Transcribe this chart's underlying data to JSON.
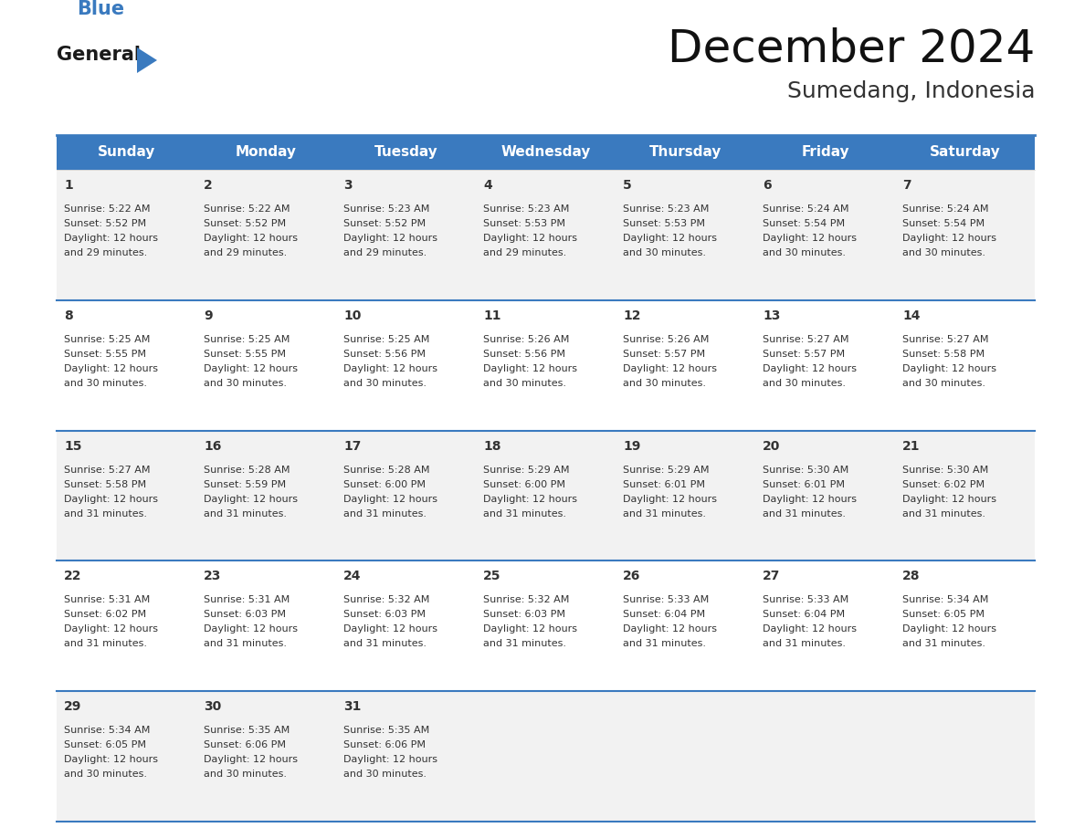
{
  "title": "December 2024",
  "subtitle": "Sumedang, Indonesia",
  "header_color": "#3a7abf",
  "header_text_color": "#ffffff",
  "cell_bg_odd": "#f2f2f2",
  "cell_bg_even": "#ffffff",
  "border_color": "#3a7abf",
  "text_color": "#333333",
  "days_of_week": [
    "Sunday",
    "Monday",
    "Tuesday",
    "Wednesday",
    "Thursday",
    "Friday",
    "Saturday"
  ],
  "calendar_data": [
    [
      {
        "day": 1,
        "sunrise": "5:22 AM",
        "sunset": "5:52 PM",
        "daylight_hrs": 12,
        "daylight_min": 29
      },
      {
        "day": 2,
        "sunrise": "5:22 AM",
        "sunset": "5:52 PM",
        "daylight_hrs": 12,
        "daylight_min": 29
      },
      {
        "day": 3,
        "sunrise": "5:23 AM",
        "sunset": "5:52 PM",
        "daylight_hrs": 12,
        "daylight_min": 29
      },
      {
        "day": 4,
        "sunrise": "5:23 AM",
        "sunset": "5:53 PM",
        "daylight_hrs": 12,
        "daylight_min": 29
      },
      {
        "day": 5,
        "sunrise": "5:23 AM",
        "sunset": "5:53 PM",
        "daylight_hrs": 12,
        "daylight_min": 30
      },
      {
        "day": 6,
        "sunrise": "5:24 AM",
        "sunset": "5:54 PM",
        "daylight_hrs": 12,
        "daylight_min": 30
      },
      {
        "day": 7,
        "sunrise": "5:24 AM",
        "sunset": "5:54 PM",
        "daylight_hrs": 12,
        "daylight_min": 30
      }
    ],
    [
      {
        "day": 8,
        "sunrise": "5:25 AM",
        "sunset": "5:55 PM",
        "daylight_hrs": 12,
        "daylight_min": 30
      },
      {
        "day": 9,
        "sunrise": "5:25 AM",
        "sunset": "5:55 PM",
        "daylight_hrs": 12,
        "daylight_min": 30
      },
      {
        "day": 10,
        "sunrise": "5:25 AM",
        "sunset": "5:56 PM",
        "daylight_hrs": 12,
        "daylight_min": 30
      },
      {
        "day": 11,
        "sunrise": "5:26 AM",
        "sunset": "5:56 PM",
        "daylight_hrs": 12,
        "daylight_min": 30
      },
      {
        "day": 12,
        "sunrise": "5:26 AM",
        "sunset": "5:57 PM",
        "daylight_hrs": 12,
        "daylight_min": 30
      },
      {
        "day": 13,
        "sunrise": "5:27 AM",
        "sunset": "5:57 PM",
        "daylight_hrs": 12,
        "daylight_min": 30
      },
      {
        "day": 14,
        "sunrise": "5:27 AM",
        "sunset": "5:58 PM",
        "daylight_hrs": 12,
        "daylight_min": 30
      }
    ],
    [
      {
        "day": 15,
        "sunrise": "5:27 AM",
        "sunset": "5:58 PM",
        "daylight_hrs": 12,
        "daylight_min": 31
      },
      {
        "day": 16,
        "sunrise": "5:28 AM",
        "sunset": "5:59 PM",
        "daylight_hrs": 12,
        "daylight_min": 31
      },
      {
        "day": 17,
        "sunrise": "5:28 AM",
        "sunset": "6:00 PM",
        "daylight_hrs": 12,
        "daylight_min": 31
      },
      {
        "day": 18,
        "sunrise": "5:29 AM",
        "sunset": "6:00 PM",
        "daylight_hrs": 12,
        "daylight_min": 31
      },
      {
        "day": 19,
        "sunrise": "5:29 AM",
        "sunset": "6:01 PM",
        "daylight_hrs": 12,
        "daylight_min": 31
      },
      {
        "day": 20,
        "sunrise": "5:30 AM",
        "sunset": "6:01 PM",
        "daylight_hrs": 12,
        "daylight_min": 31
      },
      {
        "day": 21,
        "sunrise": "5:30 AM",
        "sunset": "6:02 PM",
        "daylight_hrs": 12,
        "daylight_min": 31
      }
    ],
    [
      {
        "day": 22,
        "sunrise": "5:31 AM",
        "sunset": "6:02 PM",
        "daylight_hrs": 12,
        "daylight_min": 31
      },
      {
        "day": 23,
        "sunrise": "5:31 AM",
        "sunset": "6:03 PM",
        "daylight_hrs": 12,
        "daylight_min": 31
      },
      {
        "day": 24,
        "sunrise": "5:32 AM",
        "sunset": "6:03 PM",
        "daylight_hrs": 12,
        "daylight_min": 31
      },
      {
        "day": 25,
        "sunrise": "5:32 AM",
        "sunset": "6:03 PM",
        "daylight_hrs": 12,
        "daylight_min": 31
      },
      {
        "day": 26,
        "sunrise": "5:33 AM",
        "sunset": "6:04 PM",
        "daylight_hrs": 12,
        "daylight_min": 31
      },
      {
        "day": 27,
        "sunrise": "5:33 AM",
        "sunset": "6:04 PM",
        "daylight_hrs": 12,
        "daylight_min": 31
      },
      {
        "day": 28,
        "sunrise": "5:34 AM",
        "sunset": "6:05 PM",
        "daylight_hrs": 12,
        "daylight_min": 31
      }
    ],
    [
      {
        "day": 29,
        "sunrise": "5:34 AM",
        "sunset": "6:05 PM",
        "daylight_hrs": 12,
        "daylight_min": 30
      },
      {
        "day": 30,
        "sunrise": "5:35 AM",
        "sunset": "6:06 PM",
        "daylight_hrs": 12,
        "daylight_min": 30
      },
      {
        "day": 31,
        "sunrise": "5:35 AM",
        "sunset": "6:06 PM",
        "daylight_hrs": 12,
        "daylight_min": 30
      },
      null,
      null,
      null,
      null
    ]
  ],
  "logo_text1": "General",
  "logo_text2": "Blue",
  "logo_color1": "#1a1a1a",
  "logo_color2": "#3a7abf",
  "logo_triangle_color": "#3a7abf",
  "title_fontsize": 36,
  "subtitle_fontsize": 18,
  "header_fontsize": 11,
  "day_num_fontsize": 10,
  "cell_text_fontsize": 8
}
